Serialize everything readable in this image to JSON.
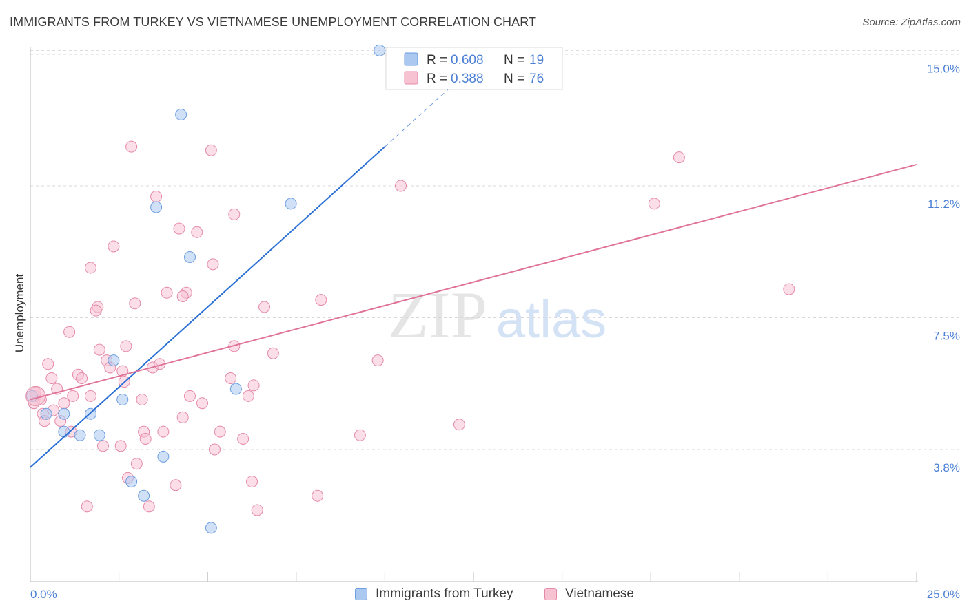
{
  "header": {
    "title": "IMMIGRANTS FROM TURKEY VS VIETNAMESE UNEMPLOYMENT CORRELATION CHART",
    "source": "Source: ZipAtlas.com"
  },
  "watermark": {
    "zip": "ZIP",
    "atlas": "atlas"
  },
  "colors": {
    "blue_fill": "#aac8f0",
    "blue_stroke": "#6b9de0",
    "blue_line": "#2a6fd4",
    "pink_fill": "#f7c3d3",
    "pink_stroke": "#e58aa8",
    "pink_line": "#e0739a",
    "axis_text": "#4a7fd4",
    "grid": "#d8d8d8"
  },
  "chart_data": {
    "type": "scatter",
    "title": "IMMIGRANTS FROM TURKEY VS VIETNAMESE UNEMPLOYMENT CORRELATION CHART",
    "xlabel": "",
    "ylabel": "Unemployment",
    "xlim": [
      0,
      25
    ],
    "ylim": [
      0,
      15.6
    ],
    "x_tick_labels": [
      "0.0%",
      "25.0%"
    ],
    "y_ticks": [
      3.8,
      7.5,
      11.2,
      15.0
    ],
    "y_tick_labels": [
      "3.8%",
      "7.5%",
      "11.2%",
      "15.0%"
    ],
    "grid": "horizontal dashed",
    "legend": [
      {
        "label_r": "R =",
        "r": "0.608",
        "label_n": "N =",
        "n": "19"
      },
      {
        "label_r": "R =",
        "r": "0.388",
        "label_n": "N =",
        "n": "76"
      }
    ],
    "series": [
      {
        "name": "Immigrants from Turkey",
        "color": "blue",
        "points": [
          [
            9.85,
            15.0
          ],
          [
            4.25,
            13.2
          ],
          [
            3.55,
            10.6
          ],
          [
            7.35,
            10.7
          ],
          [
            4.5,
            9.2
          ],
          [
            2.35,
            6.3
          ],
          [
            5.8,
            5.5
          ],
          [
            0.05,
            5.3
          ],
          [
            0.45,
            4.8
          ],
          [
            0.95,
            4.8
          ],
          [
            1.7,
            4.8
          ],
          [
            0.95,
            4.3
          ],
          [
            1.4,
            4.2
          ],
          [
            1.95,
            4.2
          ],
          [
            3.75,
            3.6
          ],
          [
            2.85,
            2.9
          ],
          [
            3.2,
            2.5
          ],
          [
            5.1,
            1.6
          ],
          [
            2.6,
            5.2
          ]
        ],
        "trend": {
          "x0": 0,
          "y0": 3.3,
          "x1": 10.0,
          "y1": 12.3,
          "dash_to_x": 12.0,
          "dash_to_y": 14.1
        }
      },
      {
        "name": "Vietnamese",
        "color": "pink",
        "points": [
          [
            10.3,
            14.3
          ],
          [
            2.85,
            12.3
          ],
          [
            5.1,
            12.2
          ],
          [
            18.3,
            12.0
          ],
          [
            10.45,
            11.2
          ],
          [
            17.6,
            10.7
          ],
          [
            3.55,
            10.9
          ],
          [
            5.75,
            10.4
          ],
          [
            4.2,
            10.0
          ],
          [
            4.7,
            9.9
          ],
          [
            2.35,
            9.5
          ],
          [
            1.7,
            8.9
          ],
          [
            5.15,
            9.0
          ],
          [
            3.85,
            8.2
          ],
          [
            4.4,
            8.2
          ],
          [
            4.3,
            8.1
          ],
          [
            2.95,
            7.9
          ],
          [
            1.9,
            7.8
          ],
          [
            1.85,
            7.7
          ],
          [
            6.6,
            7.8
          ],
          [
            8.2,
            8.0
          ],
          [
            21.4,
            8.3
          ],
          [
            1.1,
            7.1
          ],
          [
            5.75,
            6.7
          ],
          [
            2.7,
            6.7
          ],
          [
            1.95,
            6.6
          ],
          [
            0.5,
            6.2
          ],
          [
            2.15,
            6.3
          ],
          [
            2.25,
            6.1
          ],
          [
            3.45,
            6.1
          ],
          [
            3.65,
            6.2
          ],
          [
            6.85,
            6.5
          ],
          [
            9.8,
            6.3
          ],
          [
            1.35,
            5.9
          ],
          [
            1.45,
            5.8
          ],
          [
            0.6,
            5.8
          ],
          [
            5.65,
            5.8
          ],
          [
            2.65,
            5.7
          ],
          [
            6.3,
            5.6
          ],
          [
            0.75,
            5.5
          ],
          [
            1.2,
            5.3
          ],
          [
            0.15,
            5.3
          ],
          [
            0.3,
            5.2
          ],
          [
            1.7,
            5.3
          ],
          [
            4.5,
            5.3
          ],
          [
            6.15,
            5.3
          ],
          [
            3.15,
            5.2
          ],
          [
            4.85,
            5.1
          ],
          [
            0.95,
            5.1
          ],
          [
            0.65,
            4.9
          ],
          [
            0.35,
            4.8
          ],
          [
            4.3,
            4.7
          ],
          [
            0.4,
            4.6
          ],
          [
            0.85,
            4.6
          ],
          [
            1.15,
            4.3
          ],
          [
            3.2,
            4.3
          ],
          [
            3.75,
            4.3
          ],
          [
            5.35,
            4.3
          ],
          [
            3.25,
            4.1
          ],
          [
            6.0,
            4.1
          ],
          [
            9.3,
            4.2
          ],
          [
            12.1,
            4.5
          ],
          [
            2.05,
            3.9
          ],
          [
            2.55,
            3.9
          ],
          [
            5.2,
            3.8
          ],
          [
            3.0,
            3.4
          ],
          [
            2.75,
            3.0
          ],
          [
            4.1,
            2.8
          ],
          [
            6.25,
            2.9
          ],
          [
            8.1,
            2.5
          ],
          [
            1.6,
            2.2
          ],
          [
            3.35,
            2.2
          ],
          [
            6.4,
            2.1
          ],
          [
            0.15,
            5.4
          ],
          [
            0.1,
            5.1
          ],
          [
            2.6,
            6.0
          ]
        ],
        "trend": {
          "x0": 0,
          "y0": 5.2,
          "x1": 25.0,
          "y1": 11.8
        }
      }
    ]
  },
  "bottom_legend": [
    {
      "label": "Immigrants from Turkey"
    },
    {
      "label": "Vietnamese"
    }
  ]
}
